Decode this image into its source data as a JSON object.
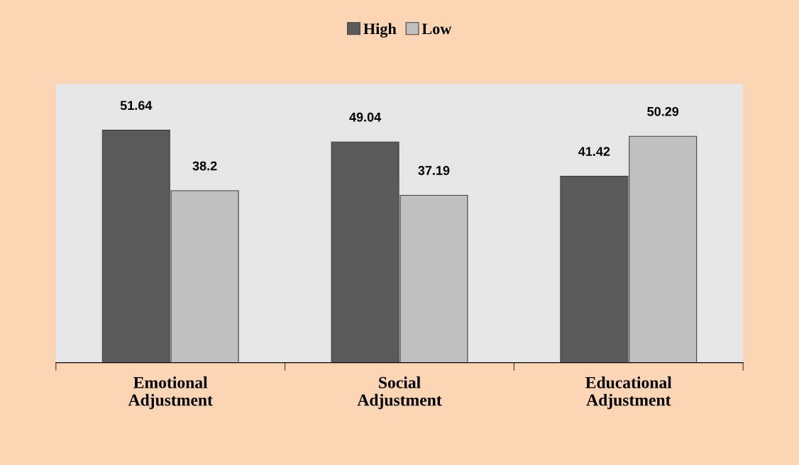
{
  "chart_data": {
    "type": "bar",
    "categories": [
      "Emotional\nAdjustment",
      "Social\nAdjustment",
      "Educational\nAdjustment"
    ],
    "series": [
      {
        "name": "High",
        "color": "#5a5a5a",
        "values": [
          51.64,
          49.04,
          41.42
        ]
      },
      {
        "name": "Low",
        "color": "#c0c0c0",
        "values": [
          38.2,
          37.19,
          50.29
        ]
      }
    ],
    "data_labels": true,
    "legend": "top",
    "grid": false
  }
}
